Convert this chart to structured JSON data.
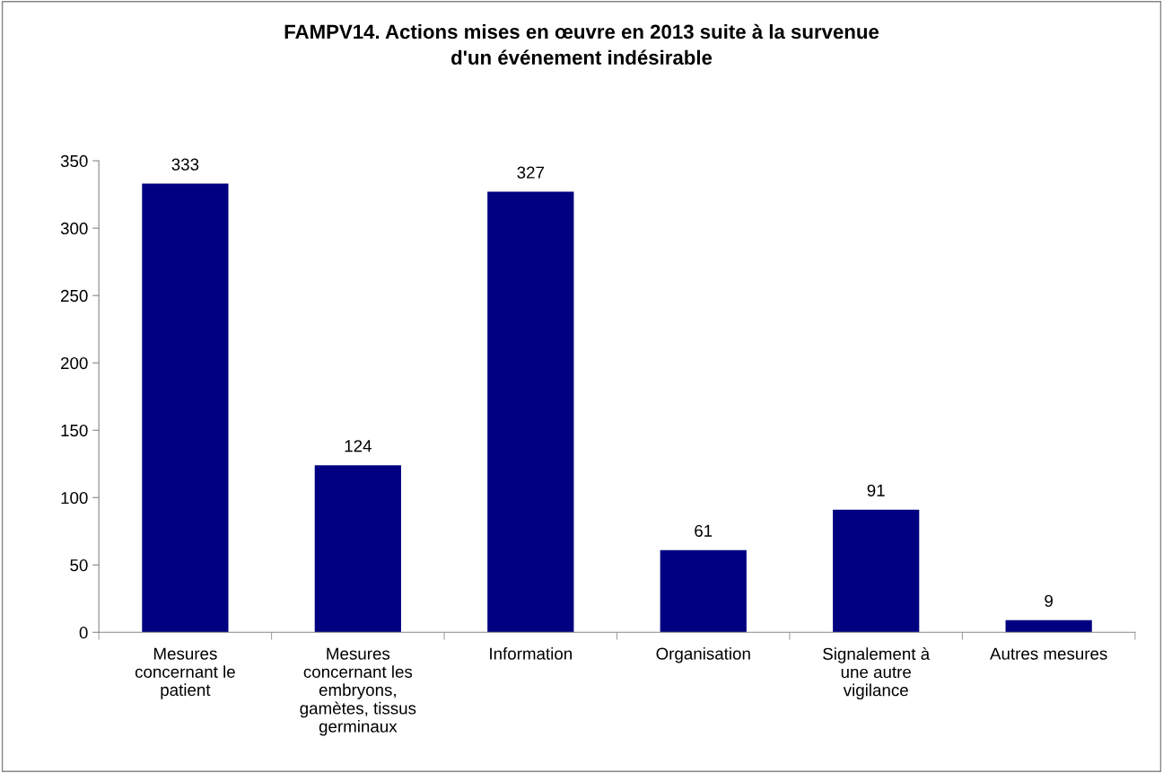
{
  "chart_data": {
    "type": "bar",
    "title": "FAMPV14. Actions mises en œuvre en 2013 suite à la survenue\nd'un événement indésirable",
    "categories": [
      "Mesures\nconcernant le\npatient",
      "Mesures\nconcernant les\nembryons,\ngamètes, tissus\ngerminaux",
      "Information",
      "Organisation",
      "Signalement à\nune autre\nvigilance",
      "Autres mesures"
    ],
    "values": [
      333,
      124,
      327,
      61,
      91,
      9
    ],
    "color": "#000080",
    "ylim": [
      0,
      350
    ],
    "yticks": [
      0,
      50,
      100,
      150,
      200,
      250,
      300,
      350
    ],
    "data_labels": true,
    "grid": false,
    "legend": false
  }
}
